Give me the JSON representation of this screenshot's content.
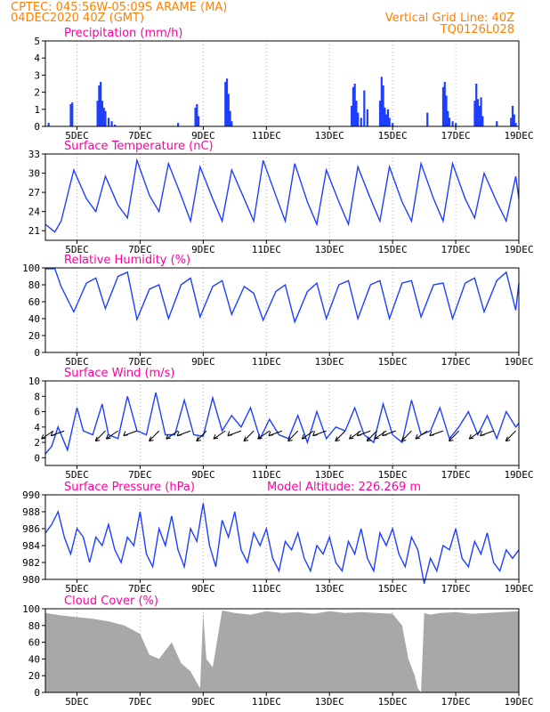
{
  "header": {
    "source": "CPTEC:   045:56W-05:09S   ARAME (MA)",
    "date": "04DEC2020 40Z (GMT)",
    "grid_note": "Vertical Grid Line: 40Z",
    "model": "TQ0126L028"
  },
  "colors": {
    "header": "#ff8000",
    "title": "#ff00a0",
    "series": "#1f3fff",
    "cloud": "#a8a8a8",
    "grid": "#aaaaaa"
  },
  "x_ticks": [
    "5DEC",
    "7DEC",
    "9DEC",
    "11DEC",
    "13DEC",
    "15DEC",
    "17DEC",
    "19DEC"
  ],
  "x_tick_days": [
    5,
    7,
    9,
    11,
    13,
    15,
    17,
    19
  ],
  "x_range_days": [
    4.0,
    19.0
  ],
  "chart_data": [
    {
      "id": "precip",
      "type": "bar",
      "title": "Precipitation (mm/h)",
      "ylim": [
        0,
        5
      ],
      "yticks": [
        0,
        1,
        2,
        3,
        4,
        5
      ],
      "x_days": [
        4.1,
        4.8,
        4.85,
        5.65,
        5.7,
        5.75,
        5.8,
        5.85,
        5.9,
        6.0,
        6.1,
        6.2,
        8.2,
        8.75,
        8.8,
        8.85,
        9.7,
        9.75,
        9.8,
        9.85,
        9.9,
        13.7,
        13.75,
        13.8,
        13.85,
        13.9,
        14.0,
        14.1,
        14.2,
        14.6,
        14.65,
        14.7,
        14.75,
        14.8,
        14.85,
        14.9,
        15.0,
        16.1,
        16.6,
        16.65,
        16.7,
        16.75,
        16.8,
        16.9,
        17.0,
        17.6,
        17.65,
        17.7,
        17.75,
        17.8,
        17.85,
        18.3,
        18.75,
        18.8,
        18.85,
        18.9
      ],
      "values": [
        0.2,
        1.3,
        1.4,
        1.5,
        2.4,
        2.6,
        1.5,
        1.1,
        0.9,
        0.5,
        0.3,
        0.1,
        0.2,
        1.1,
        1.3,
        0.6,
        2.6,
        2.8,
        1.9,
        0.9,
        0.3,
        1.2,
        2.3,
        2.5,
        1.5,
        0.8,
        0.5,
        2.1,
        1.0,
        1.5,
        2.9,
        2.4,
        1.1,
        0.7,
        1.0,
        0.5,
        0.2,
        0.8,
        2.3,
        2.6,
        1.8,
        0.9,
        0.5,
        0.3,
        0.2,
        1.5,
        2.5,
        1.6,
        1.2,
        1.7,
        0.6,
        0.3,
        0.5,
        1.2,
        0.7,
        0.2
      ]
    },
    {
      "id": "temp",
      "type": "line",
      "title": "Surface Temperature (nC)",
      "ylim": [
        19.5,
        33
      ],
      "yticks": [
        21,
        24,
        27,
        30,
        33
      ],
      "x_days": [
        4.0,
        4.3,
        4.5,
        4.9,
        5.3,
        5.6,
        5.9,
        6.3,
        6.6,
        6.9,
        7.3,
        7.6,
        7.9,
        8.3,
        8.6,
        8.9,
        9.3,
        9.6,
        9.9,
        10.3,
        10.6,
        10.9,
        11.3,
        11.6,
        11.9,
        12.3,
        12.6,
        12.9,
        13.3,
        13.6,
        13.9,
        14.3,
        14.6,
        14.9,
        15.3,
        15.6,
        15.9,
        16.3,
        16.6,
        16.9,
        17.3,
        17.6,
        17.9,
        18.3,
        18.6,
        18.9,
        19.0
      ],
      "values": [
        22.0,
        20.8,
        22.5,
        30.5,
        26.0,
        24.0,
        29.5,
        25.0,
        23.0,
        32.0,
        26.5,
        24.0,
        31.5,
        26.5,
        22.5,
        31.0,
        26.0,
        22.5,
        30.5,
        26.0,
        22.5,
        32.0,
        26.5,
        22.5,
        31.5,
        25.5,
        22.0,
        30.5,
        25.5,
        22.0,
        31.0,
        26.0,
        22.5,
        31.0,
        25.5,
        22.5,
        31.5,
        26.0,
        22.5,
        31.5,
        26.0,
        23.0,
        30.0,
        25.5,
        22.5,
        29.5,
        26.0
      ]
    },
    {
      "id": "rh",
      "type": "line",
      "title": "Relative Humidity (%)",
      "ylim": [
        0,
        100
      ],
      "yticks": [
        0,
        20,
        40,
        60,
        80,
        100
      ],
      "x_days": [
        4.0,
        4.3,
        4.5,
        4.9,
        5.3,
        5.6,
        5.9,
        6.3,
        6.6,
        6.9,
        7.3,
        7.6,
        7.9,
        8.3,
        8.6,
        8.9,
        9.3,
        9.6,
        9.9,
        10.3,
        10.6,
        10.9,
        11.3,
        11.6,
        11.9,
        12.3,
        12.6,
        12.9,
        13.3,
        13.6,
        13.9,
        14.3,
        14.6,
        14.9,
        15.3,
        15.6,
        15.9,
        16.3,
        16.6,
        16.9,
        17.3,
        17.6,
        17.9,
        18.3,
        18.6,
        18.9,
        19.0
      ],
      "values": [
        99,
        99,
        78,
        48,
        82,
        88,
        52,
        90,
        95,
        39,
        75,
        80,
        40,
        80,
        88,
        42,
        78,
        85,
        45,
        78,
        70,
        38,
        72,
        80,
        36,
        72,
        82,
        40,
        80,
        85,
        40,
        80,
        85,
        40,
        82,
        85,
        42,
        80,
        82,
        40,
        82,
        88,
        48,
        85,
        95,
        50,
        82
      ]
    },
    {
      "id": "wind",
      "type": "line",
      "title": "Surface Wind (m/s)",
      "ylim": [
        -1,
        10
      ],
      "yticks": [
        0,
        2,
        4,
        6,
        8,
        10
      ],
      "x_days": [
        4.0,
        4.2,
        4.4,
        4.7,
        5.0,
        5.2,
        5.5,
        5.8,
        6.0,
        6.3,
        6.6,
        6.9,
        7.2,
        7.5,
        7.8,
        8.1,
        8.4,
        8.7,
        9.0,
        9.3,
        9.6,
        9.9,
        10.2,
        10.5,
        10.8,
        11.1,
        11.4,
        11.7,
        12.0,
        12.3,
        12.6,
        12.9,
        13.2,
        13.5,
        13.8,
        14.1,
        14.4,
        14.7,
        15.0,
        15.3,
        15.6,
        15.9,
        16.2,
        16.5,
        16.8,
        17.1,
        17.4,
        17.7,
        18.0,
        18.3,
        18.6,
        18.9,
        19.0
      ],
      "values": [
        0.5,
        1.5,
        4.0,
        1.0,
        6.5,
        3.5,
        3.0,
        7.0,
        3.0,
        2.5,
        8.0,
        3.5,
        3.0,
        8.5,
        3.0,
        3.0,
        7.5,
        3.0,
        2.8,
        7.8,
        3.5,
        5.5,
        4.0,
        6.5,
        2.5,
        5.0,
        3.0,
        2.5,
        5.5,
        2.0,
        6.0,
        2.5,
        4.0,
        3.5,
        6.5,
        3.0,
        2.0,
        7.0,
        3.0,
        2.0,
        7.5,
        3.0,
        3.5,
        6.5,
        2.5,
        4.0,
        6.0,
        3.0,
        5.5,
        2.5,
        6.0,
        4.0,
        4.5
      ],
      "arrows_x_days": [
        4.25,
        4.6,
        5.9,
        6.3,
        6.9,
        7.6,
        8.2,
        8.6,
        9.1,
        9.7,
        10.2,
        10.6,
        11.1,
        11.5,
        12.0,
        12.5,
        12.9,
        13.5,
        14.0,
        14.3,
        14.5,
        14.8,
        15.1,
        15.6,
        16.1,
        16.6,
        17.1,
        17.8,
        18.2,
        18.9
      ]
    },
    {
      "id": "pres",
      "type": "line",
      "title": "Surface Pressure (hPa)",
      "subtitle": "Model Altitude: 226.269  m",
      "ylim": [
        980,
        990
      ],
      "yticks": [
        980,
        982,
        984,
        986,
        988,
        990
      ],
      "x_days": [
        4.0,
        4.2,
        4.4,
        4.6,
        4.8,
        5.0,
        5.2,
        5.4,
        5.6,
        5.8,
        6.0,
        6.2,
        6.4,
        6.6,
        6.8,
        7.0,
        7.2,
        7.4,
        7.6,
        7.8,
        8.0,
        8.2,
        8.4,
        8.6,
        8.8,
        9.0,
        9.2,
        9.4,
        9.6,
        9.8,
        10.0,
        10.2,
        10.4,
        10.6,
        10.8,
        11.0,
        11.2,
        11.4,
        11.6,
        11.8,
        12.0,
        12.2,
        12.4,
        12.6,
        12.8,
        13.0,
        13.2,
        13.4,
        13.6,
        13.8,
        14.0,
        14.2,
        14.4,
        14.6,
        14.8,
        15.0,
        15.2,
        15.4,
        15.6,
        15.8,
        16.0,
        16.2,
        16.4,
        16.6,
        16.8,
        17.0,
        17.2,
        17.4,
        17.6,
        17.8,
        18.0,
        18.2,
        18.4,
        18.6,
        18.8,
        19.0
      ],
      "values": [
        985.5,
        986.5,
        988.0,
        985.0,
        983.0,
        986.0,
        985.0,
        982.0,
        985.0,
        984.0,
        986.5,
        983.5,
        982.0,
        985.0,
        984.0,
        988.0,
        983.0,
        981.5,
        986.0,
        984.0,
        987.5,
        983.5,
        981.5,
        986.0,
        984.5,
        989.0,
        984.0,
        981.5,
        987.0,
        985.0,
        988.0,
        983.5,
        982.0,
        985.5,
        984.0,
        986.0,
        982.5,
        981.0,
        984.5,
        983.5,
        985.5,
        982.5,
        981.0,
        984.0,
        983.0,
        985.0,
        982.0,
        981.0,
        984.5,
        983.0,
        986.0,
        982.5,
        981.0,
        985.5,
        984.0,
        986.0,
        983.0,
        981.5,
        985.0,
        983.5,
        979.5,
        982.5,
        981.0,
        984.0,
        983.5,
        986.0,
        982.5,
        981.5,
        984.5,
        983.0,
        985.5,
        982.0,
        981.0,
        983.5,
        982.5,
        983.5
      ]
    },
    {
      "id": "cloud",
      "type": "area",
      "title": "Cloud Cover (%)",
      "ylim": [
        0,
        100
      ],
      "yticks": [
        0,
        20,
        40,
        60,
        80,
        100
      ],
      "x_days": [
        4.0,
        4.5,
        5.0,
        5.5,
        6.0,
        6.5,
        7.0,
        7.3,
        7.6,
        8.0,
        8.3,
        8.6,
        8.9,
        9.0,
        9.1,
        9.3,
        9.6,
        10.0,
        10.5,
        11.0,
        11.5,
        12.0,
        12.5,
        13.0,
        13.5,
        14.0,
        14.5,
        15.0,
        15.3,
        15.5,
        15.7,
        15.8,
        15.9,
        16.0,
        16.2,
        16.5,
        17.0,
        17.5,
        18.0,
        18.5,
        19.0
      ],
      "values": [
        95,
        92,
        90,
        88,
        85,
        80,
        70,
        45,
        40,
        60,
        35,
        25,
        5,
        95,
        40,
        30,
        98,
        95,
        93,
        97,
        95,
        96,
        94,
        97,
        95,
        96,
        95,
        94,
        80,
        40,
        20,
        5,
        0,
        95,
        93,
        95,
        96,
        94,
        95,
        96,
        97
      ]
    }
  ]
}
